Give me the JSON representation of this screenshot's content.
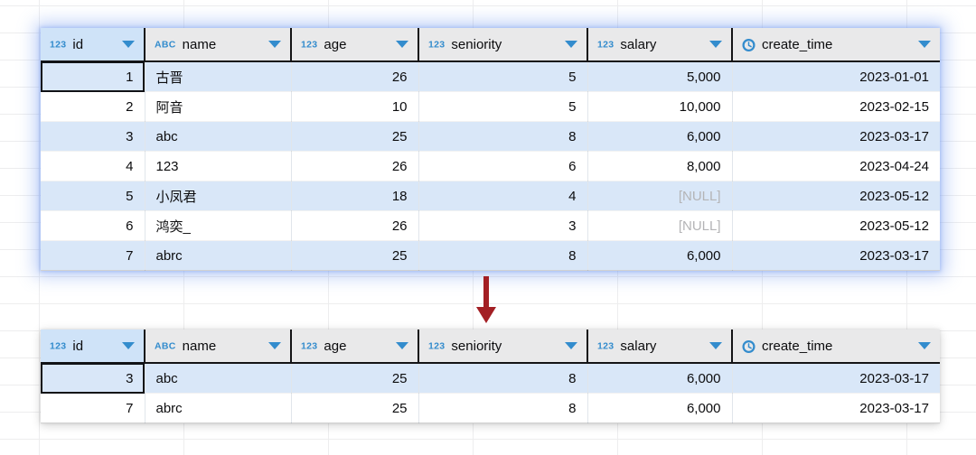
{
  "colors": {
    "accent": "#338ccd",
    "header-bg": "#e9e9ea",
    "selected-header-bg": "#cfe3f8",
    "row-alt-bg": "#d9e7f8",
    "row-bg": "#ffffff",
    "null-text": "#b4b4b6",
    "arrow": "#a31f24",
    "glow": "rgba(110,150,240,0.45)"
  },
  "null_text": "[NULL]",
  "columns": [
    {
      "label": "id",
      "badge": "123",
      "icon": "numeric-type-icon",
      "align": "right",
      "selected": true
    },
    {
      "label": "name",
      "badge": "ABC",
      "icon": "text-type-icon",
      "align": "left",
      "selected": false
    },
    {
      "label": "age",
      "badge": "123",
      "icon": "numeric-type-icon",
      "align": "right",
      "selected": false
    },
    {
      "label": "seniority",
      "badge": "123",
      "icon": "numeric-type-icon",
      "align": "right",
      "selected": false
    },
    {
      "label": "salary",
      "badge": "123",
      "icon": "numeric-type-icon",
      "align": "right",
      "selected": false
    },
    {
      "label": "create_time",
      "badge": "clock",
      "icon": "datetime-type-icon",
      "align": "right",
      "selected": false
    }
  ],
  "original_table": {
    "rows": [
      [
        "1",
        "古晋",
        "26",
        "5",
        "5,000",
        "2023-01-01"
      ],
      [
        "2",
        "阿音",
        "10",
        "5",
        "10,000",
        "2023-02-15"
      ],
      [
        "3",
        "abc",
        "25",
        "8",
        "6,000",
        "2023-03-17"
      ],
      [
        "4",
        "123",
        "26",
        "6",
        "8,000",
        "2023-04-24"
      ],
      [
        "5",
        "小凤君",
        "18",
        "4",
        "[NULL]",
        "2023-05-12"
      ],
      [
        "6",
        "鸿奕_",
        "26",
        "3",
        "[NULL]",
        "2023-05-12"
      ],
      [
        "7",
        "abrc",
        "25",
        "8",
        "6,000",
        "2023-03-17"
      ]
    ],
    "focused_cell": {
      "row": 0,
      "col": 0
    }
  },
  "filtered_table": {
    "rows": [
      [
        "3",
        "abc",
        "25",
        "8",
        "6,000",
        "2023-03-17"
      ],
      [
        "7",
        "abrc",
        "25",
        "8",
        "6,000",
        "2023-03-17"
      ]
    ],
    "focused_cell": {
      "row": 0,
      "col": 0
    }
  }
}
